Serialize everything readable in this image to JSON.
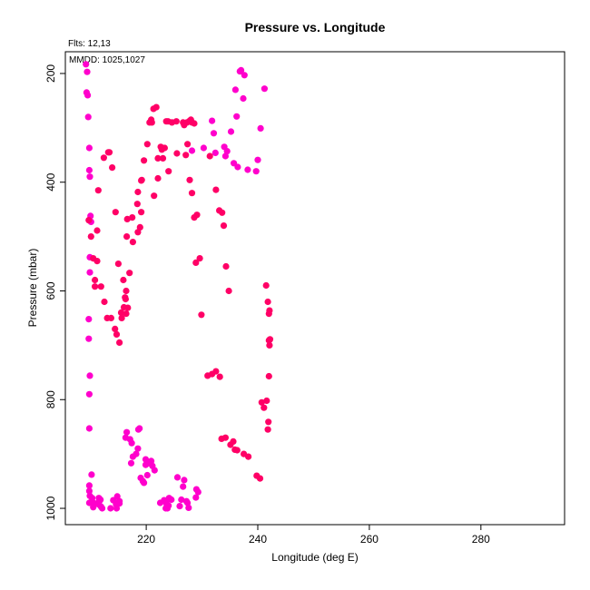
{
  "chart_data": {
    "type": "scatter",
    "title": "Pressure vs. Longitude",
    "xlabel": "Longitude (deg E)",
    "ylabel": "Pressure (mbar)",
    "xlim": [
      205.5,
      295
    ],
    "ylim": [
      1030,
      160
    ],
    "y_reversed": true,
    "grid": false,
    "legend": "none",
    "annotations": [
      "Flts: 12,13",
      "MMDD: 1025,1027"
    ],
    "xticks": [
      220,
      240,
      260,
      280
    ],
    "yticks": [
      200,
      400,
      600,
      800,
      1000
    ],
    "colors": [
      "#ff00cc",
      "#ff0066"
    ],
    "series": [
      {
        "x": [
          209.2,
          209.4,
          209.3,
          209.5,
          209.6,
          209.8,
          209.8,
          209.9,
          210.0,
          210.1,
          209.9,
          209.9,
          209.7,
          209.7,
          209.9,
          209.8,
          209.8,
          210.2,
          209.8,
          209.8,
          210.6,
          210.3,
          210.5,
          209.8,
          209.9,
          212.1,
          211.9,
          211.5,
          211.6,
          211.8,
          211.5,
          214.6,
          213.6,
          214.7,
          214.8,
          214.1,
          214.8,
          215.2,
          215.2,
          214.8,
          217.3,
          217.6,
          218.2,
          218.5,
          217.4,
          217.1,
          216.3,
          216.5,
          218.6,
          218.8,
          219.9,
          220.5,
          220.9,
          219.9,
          221.1,
          221.5,
          220.2,
          219.0,
          219.4,
          219.6,
          223.7,
          223.8,
          223.5,
          224.0,
          222.5,
          223.6,
          223.2,
          224.5,
          224.1,
          226.8,
          225.6,
          226.6,
          229.0,
          229.3,
          228.9,
          227.2,
          226.3,
          226.0,
          227.4,
          227.6,
          231.8,
          232.1,
          228.2,
          230.3,
          232.4,
          234.0,
          234.2,
          235.7,
          236.4,
          238.2,
          237.4,
          237.6,
          236.8,
          237.0,
          236.0,
          236.2,
          235.2,
          234.5,
          240.5,
          241.2,
          240.0,
          239.7
        ],
        "y": [
          183,
          197,
          235,
          240,
          280,
          337,
          378,
          390,
          462,
          473,
          538,
          566,
          652,
          688,
          756,
          790,
          853,
          938,
          958,
          968,
          990,
          981,
          998,
          990,
          977,
          1000,
          997,
          993,
          987,
          984,
          981,
          993,
          1000,
          1000,
          990,
          985,
          992,
          991,
          987,
          978,
          917,
          905,
          900,
          890,
          880,
          873,
          870,
          860,
          855,
          853,
          910,
          917,
          913,
          920,
          922,
          930,
          939,
          944,
          950,
          953,
          995,
          1000,
          1000,
          995,
          990,
          990,
          985,
          984,
          981,
          948,
          943,
          960,
          965,
          970,
          980,
          987,
          984,
          996,
          990,
          999,
          287,
          310,
          342,
          337,
          346,
          335,
          352,
          365,
          372,
          377,
          246,
          203,
          196,
          194,
          230,
          279,
          307,
          343,
          301,
          228,
          359,
          380
        ]
      },
      {
        "x": [
          210.8,
          211.2,
          211.4,
          212.4,
          213.2,
          213.4,
          213.9,
          214.5,
          215.0,
          215.5,
          216.4,
          216.2,
          215.9,
          216.5,
          216.6,
          217.5,
          218.4,
          218.5,
          219.1,
          219.2,
          219.6,
          220.2,
          220.6,
          221.0,
          220.9,
          221.3,
          221.8,
          222.6,
          223.3,
          222.1,
          223.0,
          222.8,
          223.6,
          223.9,
          224.6,
          225.4,
          226.6,
          227.4,
          227.1,
          227.8,
          228.2,
          228.6,
          229.1,
          229.6,
          228.9,
          229.9,
          231.0,
          231.8,
          232.5,
          233.2,
          233.5,
          234.2,
          235.1,
          235.6,
          235.9,
          236.3,
          237.5,
          238.3,
          239.8,
          240.4,
          240.7,
          241.1,
          241.6,
          241.8,
          241.9,
          242.0,
          242.0,
          242.1,
          242.2,
          242.1,
          242.0,
          242.1,
          241.8,
          241.5,
          234.8,
          234.3,
          233.9,
          233.6,
          233.1,
          232.5,
          231.4,
          228.6,
          228.2,
          228.0,
          227.8,
          227.3,
          226.8,
          225.5,
          224.0,
          222.1,
          221.4,
          219.1,
          218.9,
          218.5,
          217.6,
          217.0,
          216.4,
          216.3,
          216.7,
          216.0,
          215.6,
          215.2,
          214.7,
          214.4,
          213.7,
          213.0,
          212.5,
          211.9,
          211.2,
          210.8,
          210.5,
          210.1,
          209.7
        ],
        "y": [
          592,
          489,
          415,
          355,
          345,
          345,
          373,
          455,
          550,
          640,
          642,
          612,
          580,
          500,
          468,
          465,
          440,
          418,
          397,
          396,
          360,
          330,
          290,
          290,
          285,
          265,
          262,
          335,
          337,
          356,
          356,
          340,
          288,
          288,
          290,
          288,
          290,
          330,
          350,
          396,
          420,
          465,
          460,
          540,
          548,
          644,
          756,
          753,
          748,
          758,
          872,
          870,
          883,
          877,
          892,
          893,
          900,
          905,
          940,
          945,
          805,
          815,
          802,
          855,
          841,
          757,
          691,
          700,
          689,
          690,
          642,
          636,
          620,
          590,
          600,
          555,
          480,
          456,
          452,
          414,
          352,
          292,
          290,
          285,
          287,
          290,
          295,
          347,
          380,
          393,
          425,
          455,
          483,
          492,
          510,
          567,
          600,
          615,
          631,
          630,
          650,
          695,
          680,
          670,
          650,
          650,
          620,
          592,
          545,
          580,
          540,
          500,
          470
        ]
      }
    ]
  }
}
